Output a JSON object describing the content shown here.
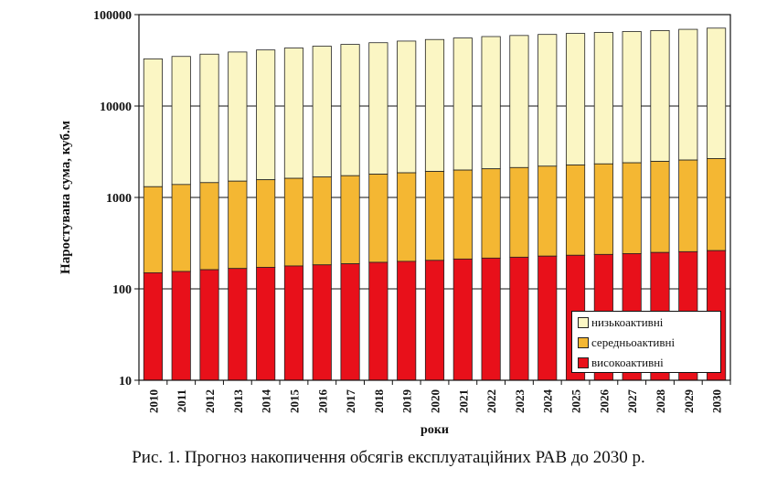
{
  "chart_data": {
    "type": "bar",
    "stacked": true,
    "y_scale": "log",
    "ylim": [
      10,
      100000
    ],
    "yticks": [
      "10",
      "100",
      "1000",
      "10000",
      "100000"
    ],
    "ylabel": "Наростувана сума, куб.м",
    "xlabel": "роки",
    "categories": [
      "2010",
      "2011",
      "2012",
      "2013",
      "2014",
      "2015",
      "2016",
      "2017",
      "2018",
      "2019",
      "2020",
      "2021",
      "2022",
      "2023",
      "2024",
      "2025",
      "2026",
      "2027",
      "2028",
      "2029",
      "2030"
    ],
    "series": [
      {
        "name": "високоактивні",
        "color": "#e8101a",
        "values": [
          150,
          155,
          162,
          167,
          172,
          178,
          183,
          188,
          195,
          200,
          205,
          212,
          217,
          222,
          228,
          233,
          238,
          243,
          250,
          255,
          262
        ]
      },
      {
        "name": "середньоактивні",
        "color": "#f4b733",
        "values": [
          1160,
          1230,
          1290,
          1340,
          1390,
          1440,
          1490,
          1540,
          1600,
          1660,
          1720,
          1780,
          1840,
          1900,
          1970,
          2030,
          2090,
          2150,
          2230,
          2310,
          2400
        ]
      },
      {
        "name": "низькоактивні",
        "color": "#fbf6c4",
        "values": [
          31500,
          33500,
          35500,
          37500,
          39500,
          41500,
          43500,
          45500,
          47500,
          49500,
          51500,
          53500,
          55500,
          57000,
          58500,
          60000,
          61500,
          63000,
          64500,
          66500,
          68500
        ]
      }
    ],
    "legend_position": "bottom-right",
    "grid": true
  },
  "caption": "Рис. 1. Прогноз накопичення обсягів експлуатаційних РАВ до 2030 р."
}
